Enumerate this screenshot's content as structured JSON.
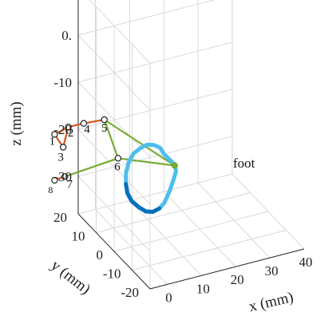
{
  "chart_data": {
    "type": "line3d",
    "xlabel": "x (mm)",
    "ylabel": "y (mm)",
    "zlabel": "z (mm)",
    "xlim": [
      -5,
      40
    ],
    "ylim": [
      -20,
      20
    ],
    "zlim": [
      -38,
      10
    ],
    "x_ticks": [
      "0",
      "10",
      "20",
      "30",
      "40"
    ],
    "y_ticks": [
      "-20",
      "-10",
      "0",
      "10",
      "20"
    ],
    "z_ticks": [
      "10",
      "0.",
      "-10",
      "-20",
      "-30"
    ],
    "grid": true,
    "joints": [
      {
        "label": "1",
        "x": -2.0,
        "y": 0,
        "z": -14.0
      },
      {
        "label": "2",
        "x": 2.0,
        "y": 0,
        "z": -12.0
      },
      {
        "label": "3",
        "x": 0.5,
        "y": 0,
        "z": -17.5
      },
      {
        "label": "4",
        "x": 6.5,
        "y": 0,
        "z": -11.0
      },
      {
        "label": "5",
        "x": 12.5,
        "y": 0,
        "z": -10.0
      },
      {
        "label": "6",
        "x": 16.5,
        "y": 0,
        "z": -20.5
      },
      {
        "label": "7",
        "x": 1.0,
        "y": 0,
        "z": -25.5
      },
      {
        "label": "8",
        "x": -2.0,
        "y": 0,
        "z": -26.5
      },
      {
        "label": "",
        "x": 33.0,
        "y": 0,
        "z": -22.5
      }
    ],
    "links_orange": [
      [
        0,
        1
      ],
      [
        1,
        2
      ],
      [
        2,
        0
      ],
      [
        1,
        3
      ],
      [
        3,
        4
      ],
      [
        6,
        7
      ]
    ],
    "links_green": [
      [
        4,
        5
      ],
      [
        4,
        8
      ],
      [
        5,
        8
      ],
      [
        5,
        6
      ]
    ],
    "foot_label": "foot",
    "foot_trajectory": [
      [
        30.0,
        -19.5
      ],
      [
        28.8,
        -17.7
      ],
      [
        27.0,
        -16.9
      ],
      [
        25.0,
        -16.8
      ],
      [
        23.2,
        -17.6
      ],
      [
        21.0,
        -19.2
      ],
      [
        19.6,
        -21.6
      ],
      [
        18.8,
        -24.5
      ],
      [
        18.8,
        -27.5
      ],
      [
        19.2,
        -30.0
      ],
      [
        20.5,
        -32.2
      ],
      [
        22.5,
        -33.8
      ],
      [
        24.6,
        -35.0
      ],
      [
        26.6,
        -35.1
      ],
      [
        28.5,
        -34.2
      ],
      [
        30.0,
        -32.6
      ],
      [
        31.5,
        -29.5
      ],
      [
        32.6,
        -26.5
      ],
      [
        33.4,
        -24.0
      ],
      [
        33.0,
        -22.2
      ],
      [
        30.0,
        -19.5
      ]
    ],
    "colors": {
      "orange": "#d95319",
      "green": "#77ac30",
      "foot_light": "#4dbeee",
      "foot_dark": "#0072bd",
      "grid": "#d9d9d9",
      "axis": "#262626"
    }
  }
}
